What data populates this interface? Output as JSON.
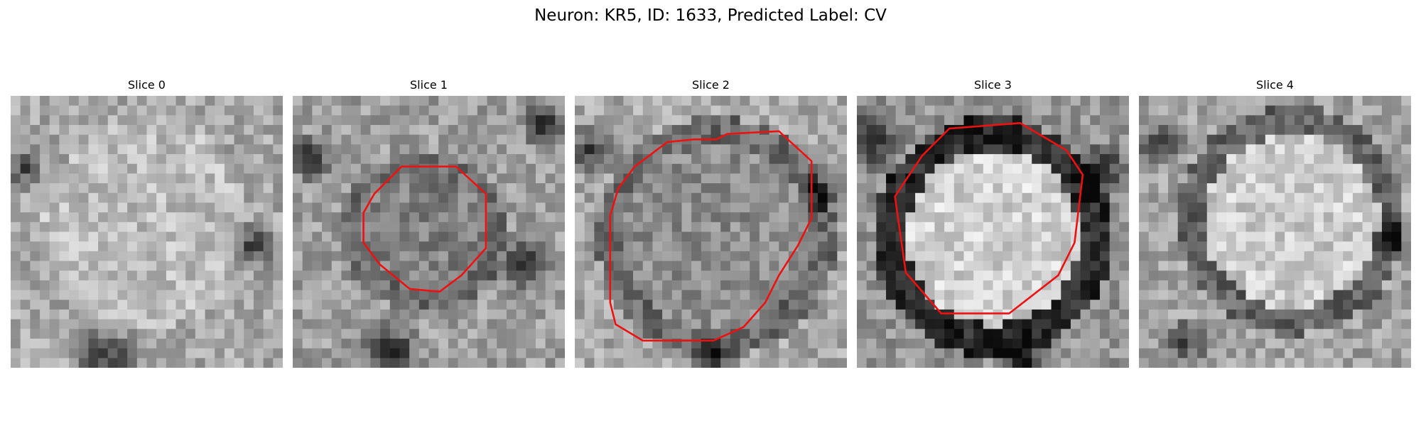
{
  "figure": {
    "title": "Neuron: KR5, ID: 1633, Predicted Label: CV"
  },
  "slices": [
    {
      "title": "Slice 0",
      "image": "grayscale-cell-crop",
      "contour": false
    },
    {
      "title": "Slice 1",
      "image": "grayscale-cell-crop",
      "contour": true
    },
    {
      "title": "Slice 2",
      "image": "grayscale-cell-crop",
      "contour": true
    },
    {
      "title": "Slice 3",
      "image": "grayscale-cell-crop",
      "contour": true
    },
    {
      "title": "Slice 4",
      "image": "grayscale-cell-crop",
      "contour": false
    }
  ],
  "colors": {
    "contour": "#ee1111"
  }
}
